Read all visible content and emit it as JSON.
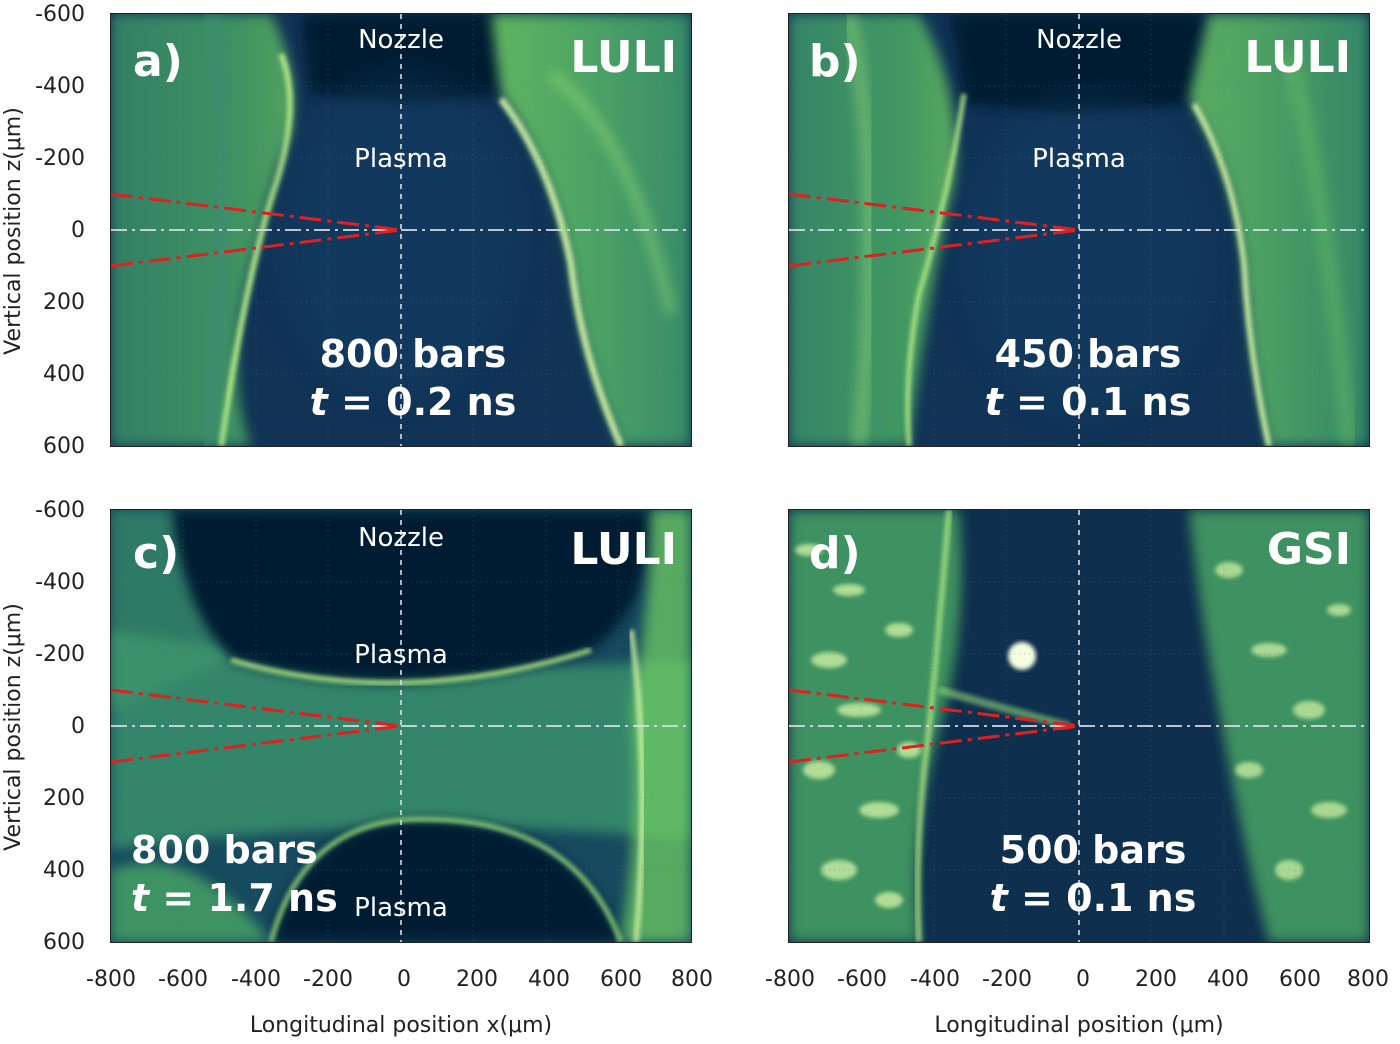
{
  "figure": {
    "y_ticks": [
      "-600",
      "-400",
      "-200",
      "0",
      "200",
      "400",
      "600"
    ],
    "x_ticks": [
      "-800",
      "-600",
      "-400",
      "-200",
      "0",
      "200",
      "400",
      "600",
      "800"
    ],
    "y_axis_label": "Vertical position z(μm)",
    "x_axis_label_left": "Longitudinal position x(μm)",
    "x_axis_label_right": "Longitudinal position  (μm)"
  },
  "panels": [
    {
      "letter": "a)",
      "facility": "LULI",
      "top_region": "Nozzle",
      "middle_region": "Plasma",
      "bottom_region": "",
      "pressure": "800 bars",
      "time_var": "t",
      "time_value": " = 0.2 ns"
    },
    {
      "letter": "b)",
      "facility": "LULI",
      "top_region": "Nozzle",
      "middle_region": "Plasma",
      "bottom_region": "",
      "pressure": "450 bars",
      "time_var": "t",
      "time_value": " = 0.1 ns"
    },
    {
      "letter": "c)",
      "facility": "LULI",
      "top_region": "Nozzle",
      "middle_region": "Plasma",
      "bottom_region": "Plasma",
      "pressure": "800 bars",
      "time_var": "t",
      "time_value": " = 1.7 ns"
    },
    {
      "letter": "d)",
      "facility": "GSI",
      "top_region": "",
      "middle_region": "",
      "bottom_region": "",
      "pressure": "500 bars",
      "time_var": "t",
      "time_value": " = 0.1 ns"
    }
  ],
  "colors": {
    "background_dark": "#0e2a4a",
    "signal_green": "#7fd65a",
    "bright": "#d8f7a8",
    "laser_path": "#e02020",
    "axis_line": "#d8e0e8"
  }
}
